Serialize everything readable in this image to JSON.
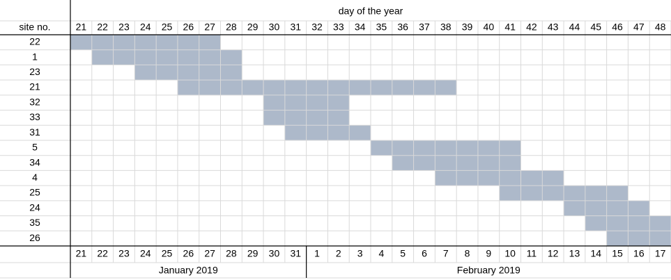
{
  "header": {
    "title": "day of the year",
    "site_label": "site no.",
    "days": [
      21,
      22,
      23,
      24,
      25,
      26,
      27,
      28,
      29,
      30,
      31,
      32,
      33,
      34,
      35,
      36,
      37,
      38,
      39,
      40,
      41,
      42,
      43,
      44,
      45,
      46,
      47,
      48
    ]
  },
  "rows": [
    {
      "site": 22,
      "start": 21,
      "end": 27
    },
    {
      "site": 1,
      "start": 22,
      "end": 28
    },
    {
      "site": 23,
      "start": 24,
      "end": 28
    },
    {
      "site": 21,
      "start": 26,
      "end": 38
    },
    {
      "site": 32,
      "start": 30,
      "end": 33
    },
    {
      "site": 33,
      "start": 30,
      "end": 33
    },
    {
      "site": 31,
      "start": 31,
      "end": 34
    },
    {
      "site": 5,
      "start": 35,
      "end": 41
    },
    {
      "site": 34,
      "start": 36,
      "end": 41
    },
    {
      "site": 4,
      "start": 38,
      "end": 43
    },
    {
      "site": 25,
      "start": 41,
      "end": 46
    },
    {
      "site": 24,
      "start": 44,
      "end": 47
    },
    {
      "site": 35,
      "start": 45,
      "end": 48
    },
    {
      "site": 26,
      "start": 46,
      "end": 48
    }
  ],
  "footer": {
    "dates": [
      21,
      22,
      23,
      24,
      25,
      26,
      27,
      28,
      29,
      30,
      31,
      1,
      2,
      3,
      4,
      5,
      6,
      7,
      8,
      9,
      10,
      11,
      12,
      13,
      14,
      15,
      16,
      17
    ],
    "months": [
      "January 2019",
      "February 2019"
    ]
  }
}
